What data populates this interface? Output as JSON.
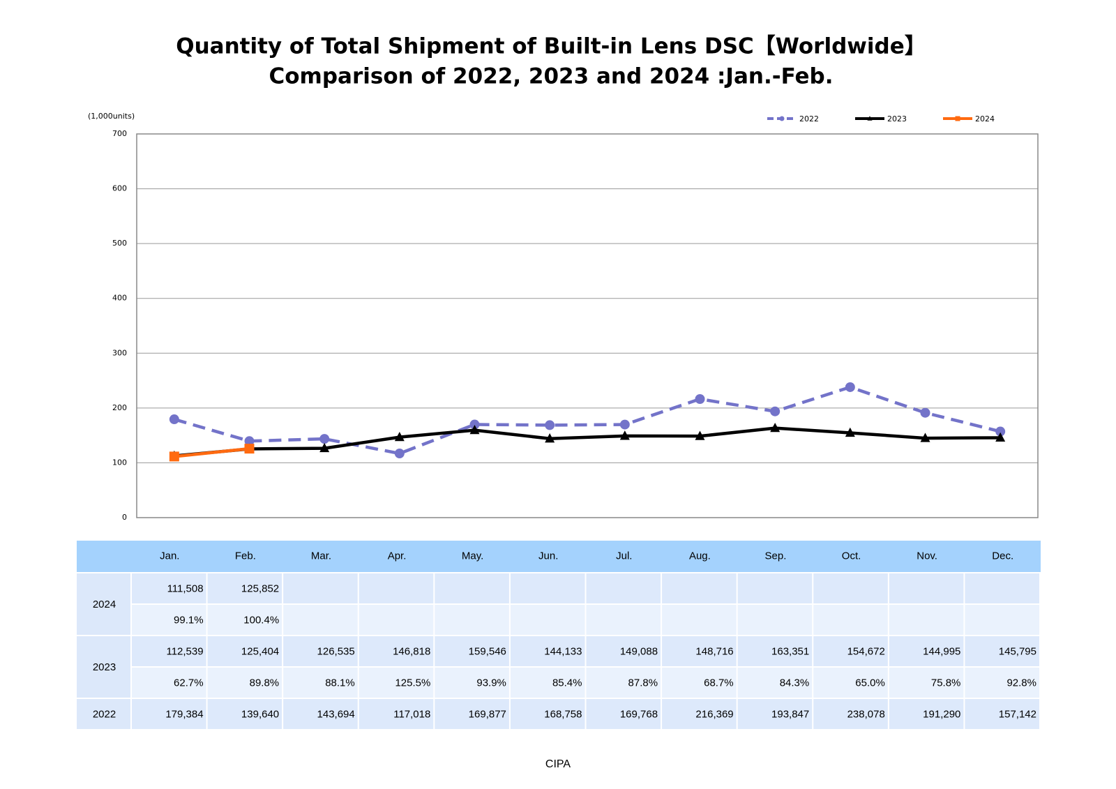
{
  "chart_data": {
    "type": "line",
    "title": "Quantity of Total Shipment of Built-in Lens DSC【Worldwide】",
    "subtitle": "Comparison of 2022, 2023 and 2024 :Jan.-Feb.",
    "y_label": "(1,000units)",
    "categories": [
      "Jan.",
      "Feb.",
      "Mar.",
      "Apr.",
      "May.",
      "Jun.",
      "Jul.",
      "Aug.",
      "Sep.",
      "Oct.",
      "Nov.",
      "Dec."
    ],
    "series": [
      {
        "name": "2022",
        "color": "#7373c9",
        "dashed": true,
        "marker": "circle",
        "values": [
          179.384,
          139.64,
          143.694,
          117.018,
          169.877,
          168.758,
          169.768,
          216.369,
          193.847,
          238.078,
          191.29,
          157.142
        ]
      },
      {
        "name": "2023",
        "color": "#000000",
        "dashed": false,
        "marker": "triangle",
        "values": [
          112.539,
          125.404,
          126.535,
          146.818,
          159.546,
          144.133,
          149.088,
          148.716,
          163.351,
          154.672,
          144.995,
          145.795
        ]
      },
      {
        "name": "2024",
        "color": "#ff6a10",
        "dashed": false,
        "marker": "square",
        "values": [
          111.508,
          125.852,
          null,
          null,
          null,
          null,
          null,
          null,
          null,
          null,
          null,
          null
        ]
      }
    ],
    "ylim": [
      0,
      700
    ],
    "yticks": [
      0,
      100,
      200,
      300,
      400,
      500,
      600,
      700
    ],
    "grid": true,
    "legend": "top-right"
  },
  "table": {
    "rows": [
      {
        "year": "2024",
        "values": [
          "111,508",
          "125,852",
          "",
          "",
          "",
          "",
          "",
          "",
          "",
          "",
          "",
          ""
        ],
        "ratios": [
          "99.1%",
          "100.4%",
          "",
          "",
          "",
          "",
          "",
          "",
          "",
          "",
          "",
          ""
        ]
      },
      {
        "year": "2023",
        "values": [
          "112,539",
          "125,404",
          "126,535",
          "146,818",
          "159,546",
          "144,133",
          "149,088",
          "148,716",
          "163,351",
          "154,672",
          "144,995",
          "145,795"
        ],
        "ratios": [
          "62.7%",
          "89.8%",
          "88.1%",
          "125.5%",
          "93.9%",
          "85.4%",
          "87.8%",
          "68.7%",
          "84.3%",
          "65.0%",
          "75.8%",
          "92.8%"
        ]
      },
      {
        "year": "2022",
        "values": [
          "179,384",
          "139,640",
          "143,694",
          "117,018",
          "169,877",
          "168,758",
          "169,768",
          "216,369",
          "193,847",
          "238,078",
          "191,290",
          "157,142"
        ]
      }
    ]
  },
  "source": "CIPA"
}
